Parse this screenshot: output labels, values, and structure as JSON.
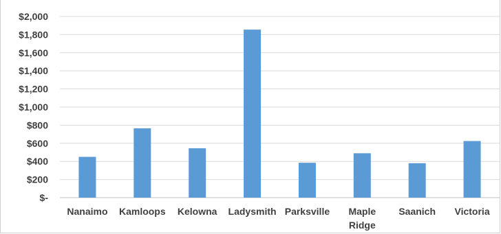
{
  "chart_data": {
    "type": "bar",
    "title": "",
    "xlabel": "",
    "ylabel": "",
    "categories": [
      "Nanaimo",
      "Kamloops",
      "Kelowna",
      "Ladysmith",
      "Parksville",
      "Maple Ridge",
      "Saanich",
      "Victoria"
    ],
    "category_label_lines": [
      [
        "Nanaimo"
      ],
      [
        "Kamloops"
      ],
      [
        "Kelowna"
      ],
      [
        "Ladysmith"
      ],
      [
        "Parksville"
      ],
      [
        "Maple",
        "Ridge"
      ],
      [
        "Saanich"
      ],
      [
        "Victoria"
      ]
    ],
    "values": [
      450,
      765,
      545,
      1855,
      385,
      490,
      380,
      625
    ],
    "ylim": [
      0,
      2000
    ],
    "yticks": [
      0,
      200,
      400,
      600,
      800,
      1000,
      1200,
      1400,
      1600,
      1800,
      2000
    ],
    "ytick_labels": [
      "$-",
      "$200",
      "$400",
      "$600",
      "$800",
      "$1,000",
      "$1,200",
      "$1,400",
      "$1,600",
      "$1,800",
      "$2,000"
    ],
    "bar_color": "#5b9bd5",
    "grid": true,
    "grid_color": "#d9d9d9",
    "legend": "none"
  }
}
